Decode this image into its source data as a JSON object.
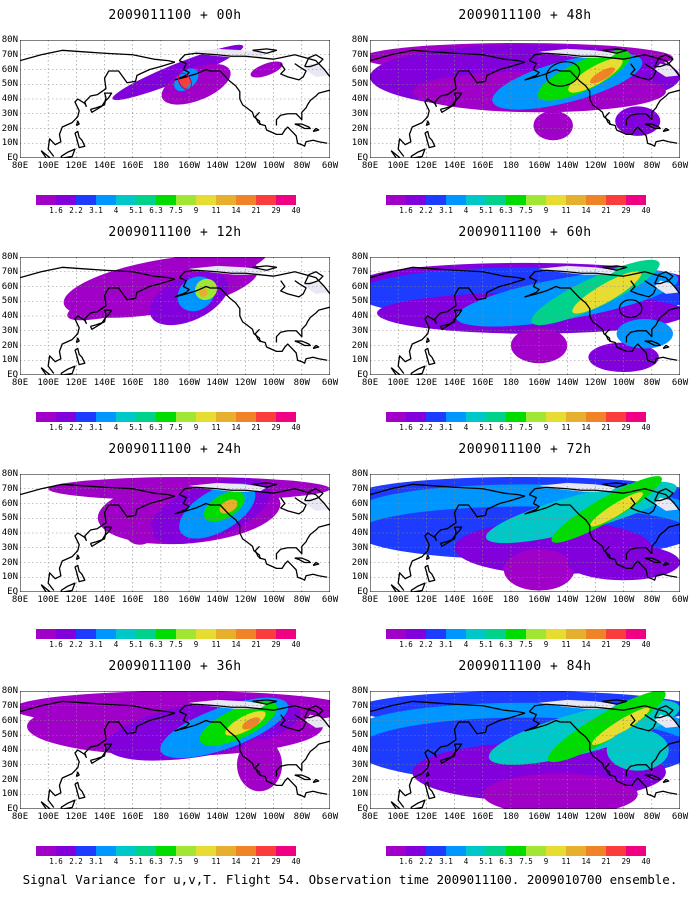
{
  "panels": [
    {
      "title": "2009011100 + 00h",
      "stage": 0
    },
    {
      "title": "2009011100 + 48h",
      "stage": 4
    },
    {
      "title": "2009011100 + 12h",
      "stage": 1
    },
    {
      "title": "2009011100 + 60h",
      "stage": 5
    },
    {
      "title": "2009011100 + 24h",
      "stage": 2
    },
    {
      "title": "2009011100 + 72h",
      "stage": 6
    },
    {
      "title": "2009011100 + 36h",
      "stage": 3
    },
    {
      "title": "2009011100 + 84h",
      "stage": 7
    }
  ],
  "lat_labels": [
    "80N",
    "70N",
    "60N",
    "50N",
    "40N",
    "30N",
    "20N",
    "10N",
    "EQ"
  ],
  "lon_labels": [
    "80E",
    "100E",
    "120E",
    "140E",
    "160E",
    "180",
    "160W",
    "140W",
    "120W",
    "100W",
    "80W",
    "60W"
  ],
  "colorbar": {
    "labels": [
      "1.6",
      "2.2",
      "3.1",
      "4",
      "5.1",
      "6.3",
      "7.5",
      "9",
      "11",
      "14",
      "21",
      "29",
      "40"
    ],
    "colors": [
      "#a000c8",
      "#8200dc",
      "#1e3cff",
      "#0096ff",
      "#00c8c8",
      "#00d28c",
      "#00dc00",
      "#a0e632",
      "#e6dc32",
      "#e6af2d",
      "#f08228",
      "#fa3c3c",
      "#f00082"
    ]
  },
  "caption": "Signal Variance for u,v,T. Flight 54. Observation time 2009011100. 2009010700 ensemble."
}
